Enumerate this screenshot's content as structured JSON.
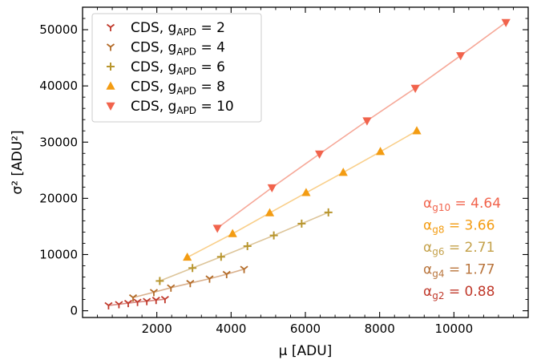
{
  "chart_data": {
    "type": "scatter",
    "title": "",
    "xlabel": "μ  [ADU]",
    "ylabel": "σ² [ADU²]",
    "xlim": [
      0,
      12000
    ],
    "ylim": [
      -1200,
      54000
    ],
    "x_ticks": [
      2000,
      4000,
      6000,
      8000,
      10000
    ],
    "y_ticks": [
      0,
      10000,
      20000,
      30000,
      40000,
      50000
    ],
    "x_tick_labels": [
      "2000",
      "4000",
      "6000",
      "8000",
      "10000"
    ],
    "y_tick_labels": [
      "0",
      "10000",
      "20000",
      "30000",
      "40000",
      "50000"
    ],
    "legend_position": "top-left",
    "grid": false,
    "series": [
      {
        "name": "CDS, g_APD = 2",
        "legend_main": "CDS, g",
        "legend_sub": "APD",
        "legend_tail": " = 2",
        "marker": "tri-down",
        "color": "#c0392b",
        "line_color": "#d98880",
        "points": [
          [
            700,
            950
          ],
          [
            980,
            1150
          ],
          [
            1230,
            1350
          ],
          [
            1480,
            1550
          ],
          [
            1730,
            1700
          ],
          [
            1980,
            1900
          ],
          [
            2220,
            2050
          ]
        ]
      },
      {
        "name": "CDS, g_APD = 4",
        "legend_main": "CDS, g",
        "legend_sub": "APD",
        "legend_tail": " = 4",
        "marker": "tri-down-thin",
        "color": "#b36b28",
        "line_color": "#d9b08c",
        "points": [
          [
            1360,
            2350
          ],
          [
            1920,
            3300
          ],
          [
            2380,
            4100
          ],
          [
            2900,
            4900
          ],
          [
            3420,
            5700
          ],
          [
            3880,
            6500
          ],
          [
            4350,
            7400
          ]
        ]
      },
      {
        "name": "CDS, g_APD = 6",
        "legend_main": "CDS, g",
        "legend_sub": "APD",
        "legend_tail": " = 6",
        "marker": "plus",
        "color": "#b8962e",
        "line_color": "#ddc59a",
        "points": [
          [
            2080,
            5300
          ],
          [
            2960,
            7600
          ],
          [
            3730,
            9600
          ],
          [
            4440,
            11500
          ],
          [
            5150,
            13400
          ],
          [
            5900,
            15500
          ],
          [
            6620,
            17500
          ]
        ]
      },
      {
        "name": "CDS, g_APD = 8",
        "legend_main": "CDS, g",
        "legend_sub": "APD",
        "legend_tail": " = 8",
        "marker": "triangle-up",
        "color": "#f39c12",
        "line_color": "#f9cf8a",
        "points": [
          [
            2820,
            9500
          ],
          [
            4040,
            13700
          ],
          [
            5040,
            17400
          ],
          [
            6020,
            21000
          ],
          [
            7020,
            24600
          ],
          [
            8020,
            28300
          ],
          [
            9000,
            32000
          ]
        ]
      },
      {
        "name": "CDS, g_APD = 10",
        "legend_main": "CDS, g",
        "legend_sub": "APD",
        "legend_tail": " = 10",
        "marker": "triangle-down",
        "color": "#f1634c",
        "line_color": "#f6a898",
        "points": [
          [
            3630,
            14700
          ],
          [
            5100,
            21900
          ],
          [
            6380,
            27900
          ],
          [
            7660,
            33800
          ],
          [
            8960,
            39600
          ],
          [
            10180,
            45400
          ],
          [
            11400,
            51300
          ]
        ]
      }
    ],
    "annotations": [
      {
        "main": "α",
        "sub": "g10",
        "tail": " = 4.64",
        "color": "#f1634c"
      },
      {
        "main": "α",
        "sub": "g8",
        "tail": " = 3.66",
        "color": "#f39c12"
      },
      {
        "main": "α",
        "sub": "g6",
        "tail": " = 2.71",
        "color": "#c4a14a"
      },
      {
        "main": "α",
        "sub": "g4",
        "tail": " = 1.77",
        "color": "#b8733a"
      },
      {
        "main": "α",
        "sub": "g2",
        "tail": " = 0.88",
        "color": "#c0392b"
      }
    ]
  }
}
